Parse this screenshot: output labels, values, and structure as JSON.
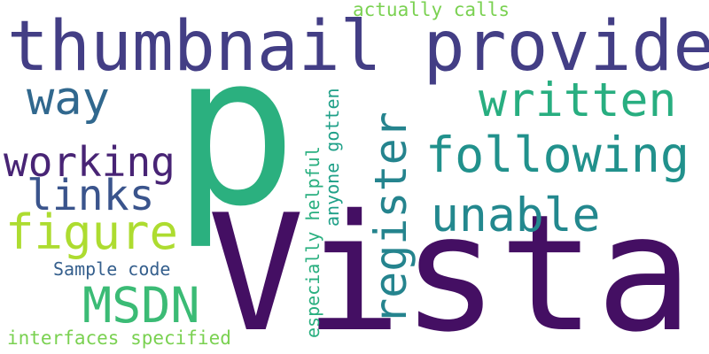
{
  "words": {
    "vista": {
      "text": "Vista",
      "color": "#440f63"
    },
    "p": {
      "text": "p",
      "color": "#2bb07f"
    },
    "thumbnail_provider": {
      "text": "thumbnail provider",
      "color": "#433e85"
    },
    "following": {
      "text": "following",
      "color": "#21918c"
    },
    "register": {
      "text": "register",
      "color": "#25848e"
    },
    "written": {
      "text": "written",
      "color": "#28ae80"
    },
    "unable": {
      "text": "unable",
      "color": "#23888e"
    },
    "way": {
      "text": "way",
      "color": "#31688e"
    },
    "working": {
      "text": "working",
      "color": "#482475"
    },
    "links": {
      "text": "links",
      "color": "#3a548c"
    },
    "figure": {
      "text": "figure",
      "color": "#addc30"
    },
    "msdn": {
      "text": "MSDN",
      "color": "#3bbb75"
    },
    "sample_code": {
      "text": "Sample code",
      "color": "#355f8d"
    },
    "interfaces_specified": {
      "text": "interfaces specified",
      "color": "#7ad151"
    },
    "actually_calls": {
      "text": "actually calls",
      "color": "#7ad151"
    },
    "especially_helpful": {
      "text": "especially helpful",
      "color": "#29af7f"
    },
    "anyone_gotten": {
      "text": "anyone gotten",
      "color": "#1fa088"
    }
  }
}
